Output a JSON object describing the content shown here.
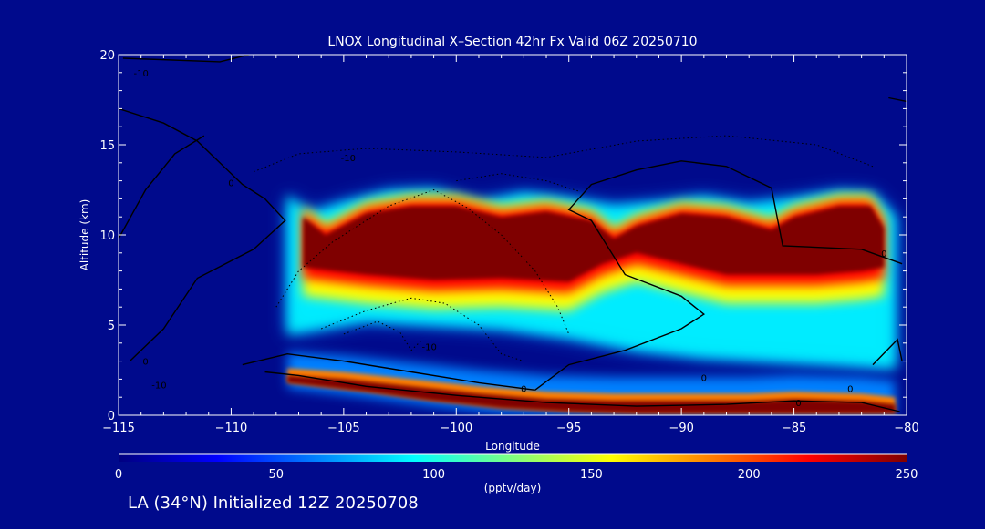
{
  "chart_data": {
    "type": "heatmap",
    "title": "LNOX Longitudinal X–Section 42hr  Fx Valid 06Z 20250710",
    "xlabel": "Longitude",
    "ylabel": "Altitude (km)",
    "xlim": [
      -115,
      -80
    ],
    "ylim": [
      0,
      20
    ],
    "x_ticks": [
      -115,
      -110,
      -105,
      -100,
      -95,
      -90,
      -85,
      -80
    ],
    "x_tick_labels": [
      "−115",
      "−110",
      "−105",
      "−100",
      "−95",
      "−90",
      "−85",
      "−80"
    ],
    "y_ticks": [
      0,
      5,
      10,
      15,
      20
    ],
    "y_tick_labels": [
      "0",
      "5",
      "10",
      "15",
      "20"
    ],
    "colorbar": {
      "label": "(pptv/day)",
      "min": 0,
      "max": 250,
      "ticks": [
        0,
        50,
        100,
        150,
        200,
        250
      ],
      "tick_labels": [
        "0",
        "50",
        "100",
        "150",
        "200",
        "250"
      ],
      "colors": [
        "#00007f",
        "#0000ff",
        "#0080ff",
        "#00ffff",
        "#80ff80",
        "#ffff00",
        "#ff8000",
        "#ff0000",
        "#7f0000"
      ]
    },
    "field_background_color": "#000a8c",
    "upper_band": {
      "lon_start": -107.5,
      "lon_end": -80.5,
      "top_km": [
        [
          -107.5,
          12.2
        ],
        [
          -106.5,
          11.2
        ],
        [
          -105,
          11.8
        ],
        [
          -103,
          12.4
        ],
        [
          -101,
          12.5
        ],
        [
          -99,
          11.8
        ],
        [
          -97,
          12.3
        ],
        [
          -95,
          12.0
        ],
        [
          -93,
          11.6
        ],
        [
          -91,
          11.8
        ],
        [
          -89,
          12.1
        ],
        [
          -87,
          11.7
        ],
        [
          -85,
          12.0
        ],
        [
          -83,
          12.4
        ],
        [
          -81.5,
          12.3
        ],
        [
          -80.5,
          11.0
        ]
      ],
      "bottom_km": [
        [
          -107.5,
          4.5
        ],
        [
          -104,
          5.2
        ],
        [
          -101,
          5.0
        ],
        [
          -98,
          4.8
        ],
        [
          -95,
          4.3
        ],
        [
          -92,
          3.6
        ],
        [
          -89,
          3.2
        ],
        [
          -86,
          3.0
        ],
        [
          -83,
          2.8
        ],
        [
          -80.5,
          2.6
        ]
      ],
      "core_top_km": [
        [
          -106.8,
          11.0
        ],
        [
          -105.8,
          10.0
        ],
        [
          -104,
          11.2
        ],
        [
          -102,
          11.6
        ],
        [
          -100,
          11.6
        ],
        [
          -98,
          11.0
        ],
        [
          -96,
          11.3
        ],
        [
          -94,
          10.8
        ],
        [
          -93,
          9.8
        ],
        [
          -92,
          10.5
        ],
        [
          -90,
          11.2
        ],
        [
          -88,
          11.0
        ],
        [
          -86,
          10.3
        ],
        [
          -85,
          11.0
        ],
        [
          -83,
          11.6
        ],
        [
          -81.6,
          11.6
        ],
        [
          -81,
          10.4
        ]
      ],
      "core_bottom_km": [
        [
          -106.8,
          8.2
        ],
        [
          -104,
          7.8
        ],
        [
          -101,
          7.5
        ],
        [
          -98,
          7.6
        ],
        [
          -95,
          7.4
        ],
        [
          -93.5,
          8.4
        ],
        [
          -92,
          9.0
        ],
        [
          -90,
          8.4
        ],
        [
          -88,
          7.8
        ],
        [
          -86,
          7.8
        ],
        [
          -84,
          7.8
        ],
        [
          -82,
          8.0
        ],
        [
          -81,
          8.2
        ]
      ]
    },
    "surface_band": {
      "core_top_km": [
        [
          -107.5,
          2.2
        ],
        [
          -105,
          2.0
        ],
        [
          -102,
          1.6
        ],
        [
          -99,
          1.2
        ],
        [
          -96,
          0.9
        ],
        [
          -93,
          0.8
        ],
        [
          -90,
          0.8
        ],
        [
          -87,
          0.8
        ],
        [
          -85,
          0.9
        ],
        [
          -82,
          0.8
        ],
        [
          -80.5,
          0.6
        ]
      ],
      "core_bottom_km": [
        [
          -107.5,
          1.8
        ],
        [
          -104,
          1.3
        ],
        [
          -101,
          0.8
        ],
        [
          -98,
          0.4
        ],
        [
          -95,
          0.2
        ],
        [
          -92,
          0.1
        ],
        [
          -89,
          0.1
        ],
        [
          -86,
          0.1
        ],
        [
          -83,
          0.1
        ],
        [
          -80.5,
          0.1
        ]
      ]
    },
    "solid_contours_km": [
      [
        [
          -114.8,
          19.8
        ],
        [
          -110.5,
          19.6
        ],
        [
          -109.2,
          20.0
        ]
      ],
      [
        [
          -115,
          17.0
        ],
        [
          -113,
          16.2
        ],
        [
          -111.5,
          15.2
        ],
        [
          -109.5,
          12.8
        ],
        [
          -108.5,
          12.0
        ],
        [
          -107.6,
          10.8
        ],
        [
          -109,
          9.2
        ],
        [
          -111.5,
          7.6
        ],
        [
          -113,
          4.8
        ],
        [
          -114.5,
          3.0
        ]
      ],
      [
        [
          -115,
          9.8
        ],
        [
          -113.8,
          12.5
        ],
        [
          -112.5,
          14.5
        ],
        [
          -111.2,
          15.5
        ]
      ],
      [
        [
          -109.5,
          2.8
        ],
        [
          -107.5,
          3.4
        ],
        [
          -105,
          3.0
        ],
        [
          -102,
          2.4
        ],
        [
          -99,
          1.8
        ],
        [
          -96.5,
          1.4
        ]
      ],
      [
        [
          -108.5,
          2.4
        ],
        [
          -107,
          2.2
        ],
        [
          -104,
          1.6
        ],
        [
          -100,
          1.1
        ],
        [
          -96,
          0.7
        ],
        [
          -92,
          0.5
        ],
        [
          -88,
          0.6
        ],
        [
          -85,
          0.8
        ],
        [
          -82,
          0.7
        ],
        [
          -80.3,
          0.2
        ]
      ],
      [
        [
          -96.5,
          1.4
        ],
        [
          -95,
          2.8
        ],
        [
          -92.5,
          3.6
        ],
        [
          -90,
          4.8
        ],
        [
          -89,
          5.6
        ],
        [
          -90,
          6.6
        ],
        [
          -92.5,
          7.8
        ],
        [
          -94,
          10.8
        ],
        [
          -95,
          11.4
        ],
        [
          -94,
          12.8
        ],
        [
          -92,
          13.6
        ],
        [
          -90,
          14.1
        ],
        [
          -88,
          13.8
        ],
        [
          -86,
          12.6
        ],
        [
          -85.5,
          9.4
        ],
        [
          -82,
          9.2
        ],
        [
          -80.2,
          8.4
        ]
      ],
      [
        [
          -81.5,
          2.8
        ],
        [
          -80.4,
          4.2
        ],
        [
          -80.2,
          3.0
        ]
      ],
      [
        [
          -80.8,
          17.6
        ],
        [
          -80,
          17.4
        ]
      ]
    ],
    "dotted_contours_km": [
      [
        [
          -108,
          6.0
        ],
        [
          -107,
          8.0
        ],
        [
          -105.5,
          9.6
        ],
        [
          -103,
          11.6
        ],
        [
          -101,
          12.5
        ],
        [
          -99.5,
          11.5
        ],
        [
          -98,
          10.0
        ],
        [
          -96.5,
          8.0
        ],
        [
          -95.5,
          6.0
        ],
        [
          -95,
          4.5
        ]
      ],
      [
        [
          -106,
          4.8
        ],
        [
          -104,
          5.8
        ],
        [
          -102,
          6.5
        ],
        [
          -100.5,
          6.2
        ],
        [
          -99,
          5.0
        ],
        [
          -98,
          3.4
        ],
        [
          -97,
          3.0
        ]
      ],
      [
        [
          -105,
          4.5
        ],
        [
          -103.5,
          5.2
        ],
        [
          -102.5,
          4.6
        ],
        [
          -102,
          3.6
        ],
        [
          -101.5,
          4.2
        ]
      ],
      [
        [
          -109,
          13.5
        ],
        [
          -107,
          14.5
        ],
        [
          -104,
          14.8
        ],
        [
          -100,
          14.6
        ],
        [
          -96,
          14.3
        ],
        [
          -92,
          15.2
        ],
        [
          -88,
          15.5
        ],
        [
          -84,
          15.0
        ],
        [
          -81.5,
          13.8
        ]
      ],
      [
        [
          -100,
          13.0
        ],
        [
          -98,
          13.4
        ],
        [
          -96,
          13.0
        ],
        [
          -94.5,
          12.4
        ]
      ]
    ],
    "contour_labels": [
      {
        "lon": -114.0,
        "alt": 18.8,
        "text": "-10"
      },
      {
        "lon": -110.0,
        "alt": 12.7,
        "text": "0"
      },
      {
        "lon": -104.8,
        "alt": 14.1,
        "text": "-10"
      },
      {
        "lon": -113.8,
        "alt": 2.8,
        "text": "0"
      },
      {
        "lon": -113.2,
        "alt": 1.5,
        "text": "-10"
      },
      {
        "lon": -101.2,
        "alt": 3.6,
        "text": "-10"
      },
      {
        "lon": -97.0,
        "alt": 1.3,
        "text": "0"
      },
      {
        "lon": -89.0,
        "alt": 1.9,
        "text": "0"
      },
      {
        "lon": -84.8,
        "alt": 0.5,
        "text": "0"
      },
      {
        "lon": -82.5,
        "alt": 1.3,
        "text": "0"
      },
      {
        "lon": -81.0,
        "alt": 8.8,
        "text": "0"
      }
    ]
  },
  "footer": {
    "text": "LA (34°N) Initialized 12Z 20250708"
  }
}
